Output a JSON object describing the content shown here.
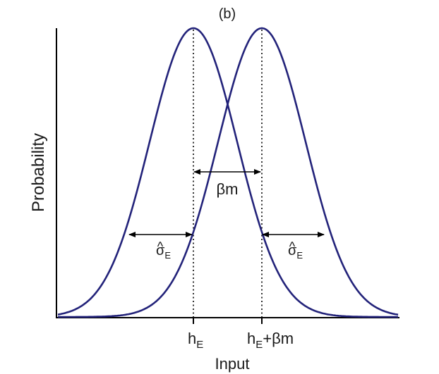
{
  "panel_label": "(b)",
  "axes": {
    "x_label": "Input",
    "y_label": "Probability"
  },
  "ticks": {
    "left": {
      "main": "h",
      "sub": "E"
    },
    "right": {
      "main": "h",
      "sub": "E",
      "suffix": "+βm"
    }
  },
  "annotations": {
    "shift_label": "βm",
    "left_width": {
      "main": "σ",
      "hat": "^",
      "sub": "E"
    },
    "right_width": {
      "main": "σ",
      "hat": "^",
      "sub": "E"
    }
  },
  "colors": {
    "curve": "#23237a",
    "axis": "#000000"
  },
  "distributions": [
    {
      "mean": "h_E",
      "shape": "gaussian"
    },
    {
      "mean": "h_E+βm",
      "shape": "gaussian"
    }
  ]
}
